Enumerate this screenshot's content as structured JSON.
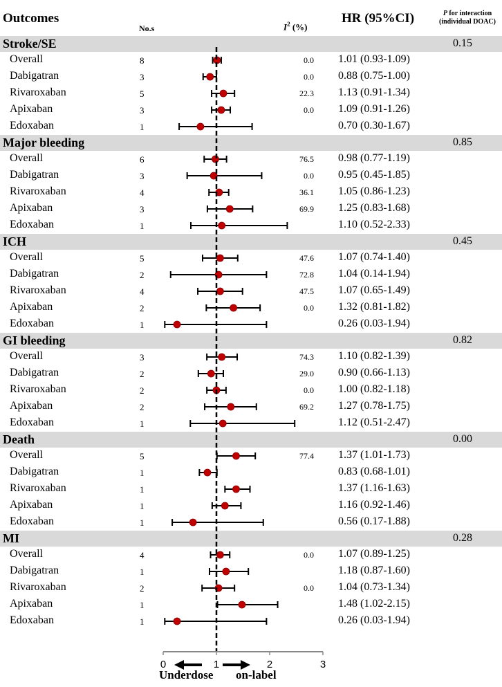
{
  "headers": {
    "outcomes": "Outcomes",
    "nos": "No.s",
    "i2_symbol": "I",
    "i2_sup": "2",
    "i2_unit": " (%)",
    "hr": "HR (95%CI)",
    "p_letter": "P",
    "p_rest": " for interaction",
    "p_line2": "(individual DOAC)"
  },
  "groups": [
    {
      "title": "Stroke/SE",
      "p": "0.15",
      "rows": [
        {
          "label": "Overall",
          "n": "8",
          "i2": "0.0",
          "hr": 1.01,
          "lo": 0.93,
          "hi": 1.09,
          "hr_text": "1.01 (0.93-1.09)"
        },
        {
          "label": "Dabigatran",
          "n": "3",
          "i2": "0.0",
          "hr": 0.88,
          "lo": 0.75,
          "hi": 1.0,
          "hr_text": "0.88 (0.75-1.00)"
        },
        {
          "label": "Rivaroxaban",
          "n": "5",
          "i2": "22.3",
          "hr": 1.13,
          "lo": 0.91,
          "hi": 1.34,
          "hr_text": "1.13 (0.91-1.34)"
        },
        {
          "label": "Apixaban",
          "n": "3",
          "i2": "0.0",
          "hr": 1.09,
          "lo": 0.91,
          "hi": 1.26,
          "hr_text": "1.09 (0.91-1.26)"
        },
        {
          "label": "Edoxaban",
          "n": "1",
          "i2": "",
          "hr": 0.7,
          "lo": 0.3,
          "hi": 1.67,
          "hr_text": "0.70 (0.30-1.67)"
        }
      ]
    },
    {
      "title": "Major bleeding",
      "p": "0.85",
      "rows": [
        {
          "label": "Overall",
          "n": "6",
          "i2": "76.5",
          "hr": 0.98,
          "lo": 0.77,
          "hi": 1.19,
          "hr_text": "0.98 (0.77-1.19)"
        },
        {
          "label": "Dabigatran",
          "n": "3",
          "i2": "0.0",
          "hr": 0.95,
          "lo": 0.45,
          "hi": 1.85,
          "hr_text": "0.95 (0.45-1.85)"
        },
        {
          "label": "Rivaroxaban",
          "n": "4",
          "i2": "36.1",
          "hr": 1.05,
          "lo": 0.86,
          "hi": 1.23,
          "hr_text": "1.05 (0.86-1.23)"
        },
        {
          "label": "Apixaban",
          "n": "3",
          "i2": "69.9",
          "hr": 1.25,
          "lo": 0.83,
          "hi": 1.68,
          "hr_text": "1.25 (0.83-1.68)"
        },
        {
          "label": "Edoxaban",
          "n": "1",
          "i2": "",
          "hr": 1.1,
          "lo": 0.52,
          "hi": 2.33,
          "hr_text": "1.10 (0.52-2.33)"
        }
      ]
    },
    {
      "title": "ICH",
      "p": "0.45",
      "rows": [
        {
          "label": "Overall",
          "n": "5",
          "i2": "47.6",
          "hr": 1.07,
          "lo": 0.74,
          "hi": 1.4,
          "hr_text": "1.07 (0.74-1.40)"
        },
        {
          "label": "Dabigatran",
          "n": "2",
          "i2": "72.8",
          "hr": 1.04,
          "lo": 0.14,
          "hi": 1.94,
          "hr_text": "1.04 (0.14-1.94)"
        },
        {
          "label": "Rivaroxaban",
          "n": "4",
          "i2": "47.5",
          "hr": 1.07,
          "lo": 0.65,
          "hi": 1.49,
          "hr_text": "1.07 (0.65-1.49)"
        },
        {
          "label": "Apixaban",
          "n": "2",
          "i2": "0.0",
          "hr": 1.32,
          "lo": 0.81,
          "hi": 1.82,
          "hr_text": "1.32 (0.81-1.82)"
        },
        {
          "label": "Edoxaban",
          "n": "1",
          "i2": "",
          "hr": 0.26,
          "lo": 0.03,
          "hi": 1.94,
          "hr_text": "0.26 (0.03-1.94)"
        }
      ]
    },
    {
      "title": "GI bleeding",
      "p": "0.82",
      "rows": [
        {
          "label": "Overall",
          "n": "3",
          "i2": "74.3",
          "hr": 1.1,
          "lo": 0.82,
          "hi": 1.39,
          "hr_text": "1.10 (0.82-1.39)"
        },
        {
          "label": "Dabigatran",
          "n": "2",
          "i2": "29.0",
          "hr": 0.9,
          "lo": 0.66,
          "hi": 1.13,
          "hr_text": "0.90 (0.66-1.13)"
        },
        {
          "label": "Rivaroxaban",
          "n": "2",
          "i2": "0.0",
          "hr": 1.0,
          "lo": 0.82,
          "hi": 1.18,
          "hr_text": "1.00 (0.82-1.18)"
        },
        {
          "label": "Apixaban",
          "n": "2",
          "i2": "69.2",
          "hr": 1.27,
          "lo": 0.78,
          "hi": 1.75,
          "hr_text": "1.27 (0.78-1.75)"
        },
        {
          "label": "Edoxaban",
          "n": "1",
          "i2": "",
          "hr": 1.12,
          "lo": 0.51,
          "hi": 2.47,
          "hr_text": "1.12 (0.51-2.47)"
        }
      ]
    },
    {
      "title": "Death",
      "p": "0.00",
      "rows": [
        {
          "label": "Overall",
          "n": "5",
          "i2": "77.4",
          "hr": 1.37,
          "lo": 1.01,
          "hi": 1.73,
          "hr_text": "1.37 (1.01-1.73)"
        },
        {
          "label": "Dabigatran",
          "n": "1",
          "i2": "",
          "hr": 0.83,
          "lo": 0.68,
          "hi": 1.01,
          "hr_text": "0.83 (0.68-1.01)"
        },
        {
          "label": "Rivaroxaban",
          "n": "1",
          "i2": "",
          "hr": 1.37,
          "lo": 1.16,
          "hi": 1.63,
          "hr_text": "1.37 (1.16-1.63)"
        },
        {
          "label": "Apixaban",
          "n": "1",
          "i2": "",
          "hr": 1.16,
          "lo": 0.92,
          "hi": 1.46,
          "hr_text": "1.16 (0.92-1.46)"
        },
        {
          "label": "Edoxaban",
          "n": "1",
          "i2": "",
          "hr": 0.56,
          "lo": 0.17,
          "hi": 1.88,
          "hr_text": "0.56 (0.17-1.88)"
        }
      ]
    },
    {
      "title": "MI",
      "p": "0.28",
      "rows": [
        {
          "label": "Overall",
          "n": "4",
          "i2": "0.0",
          "hr": 1.07,
          "lo": 0.89,
          "hi": 1.25,
          "hr_text": "1.07 (0.89-1.25)"
        },
        {
          "label": "Dabigatran",
          "n": "1",
          "i2": "",
          "hr": 1.18,
          "lo": 0.87,
          "hi": 1.6,
          "hr_text": "1.18 (0.87-1.60)"
        },
        {
          "label": "Rivaroxaban",
          "n": "2",
          "i2": "0.0",
          "hr": 1.04,
          "lo": 0.73,
          "hi": 1.34,
          "hr_text": "1.04 (0.73-1.34)"
        },
        {
          "label": "Apixaban",
          "n": "1",
          "i2": "",
          "hr": 1.48,
          "lo": 1.02,
          "hi": 2.15,
          "hr_text": "1.48 (1.02-2.15)"
        },
        {
          "label": "Edoxaban",
          "n": "1",
          "i2": "",
          "hr": 0.26,
          "lo": 0.03,
          "hi": 1.94,
          "hr_text": "0.26 (0.03-1.94)"
        }
      ]
    }
  ],
  "chart_data": {
    "type": "forest",
    "title": "",
    "xlabel": "",
    "xlim": [
      0,
      3
    ],
    "xticks": [
      "0",
      "1",
      "2",
      "3"
    ],
    "reference_line": 1,
    "direction_labels": {
      "left": "Underdose",
      "right": "on-label"
    },
    "series": [
      {
        "name": "Stroke/SE",
        "categories": [
          "Overall",
          "Dabigatran",
          "Rivaroxaban",
          "Apixaban",
          "Edoxaban"
        ],
        "hr": [
          1.01,
          0.88,
          1.13,
          1.09,
          0.7
        ],
        "lo": [
          0.93,
          0.75,
          0.91,
          0.91,
          0.3
        ],
        "hi": [
          1.09,
          1.0,
          1.34,
          1.26,
          1.67
        ]
      },
      {
        "name": "Major bleeding",
        "categories": [
          "Overall",
          "Dabigatran",
          "Rivaroxaban",
          "Apixaban",
          "Edoxaban"
        ],
        "hr": [
          0.98,
          0.95,
          1.05,
          1.25,
          1.1
        ],
        "lo": [
          0.77,
          0.45,
          0.86,
          0.83,
          0.52
        ],
        "hi": [
          1.19,
          1.85,
          1.23,
          1.68,
          2.33
        ]
      },
      {
        "name": "ICH",
        "categories": [
          "Overall",
          "Dabigatran",
          "Rivaroxaban",
          "Apixaban",
          "Edoxaban"
        ],
        "hr": [
          1.07,
          1.04,
          1.07,
          1.32,
          0.26
        ],
        "lo": [
          0.74,
          0.14,
          0.65,
          0.81,
          0.03
        ],
        "hi": [
          1.4,
          1.94,
          1.49,
          1.82,
          1.94
        ]
      },
      {
        "name": "GI bleeding",
        "categories": [
          "Overall",
          "Dabigatran",
          "Rivaroxaban",
          "Apixaban",
          "Edoxaban"
        ],
        "hr": [
          1.1,
          0.9,
          1.0,
          1.27,
          1.12
        ],
        "lo": [
          0.82,
          0.66,
          0.82,
          0.78,
          0.51
        ],
        "hi": [
          1.39,
          1.13,
          1.18,
          1.75,
          2.47
        ]
      },
      {
        "name": "Death",
        "categories": [
          "Overall",
          "Dabigatran",
          "Rivaroxaban",
          "Apixaban",
          "Edoxaban"
        ],
        "hr": [
          1.37,
          0.83,
          1.37,
          1.16,
          0.56
        ],
        "lo": [
          1.01,
          0.68,
          1.16,
          0.92,
          0.17
        ],
        "hi": [
          1.73,
          1.01,
          1.63,
          1.46,
          1.88
        ]
      },
      {
        "name": "MI",
        "categories": [
          "Overall",
          "Dabigatran",
          "Rivaroxaban",
          "Apixaban",
          "Edoxaban"
        ],
        "hr": [
          1.07,
          1.18,
          1.04,
          1.48,
          0.26
        ],
        "lo": [
          0.89,
          0.87,
          0.73,
          1.02,
          0.03
        ],
        "hi": [
          1.25,
          1.6,
          1.34,
          2.15,
          1.94
        ]
      }
    ],
    "p_interaction": {
      "Stroke/SE": 0.15,
      "Major bleeding": 0.85,
      "ICH": 0.45,
      "GI bleeding": 0.82,
      "Death": 0.0,
      "MI": 0.28
    },
    "marker_color": "#c00000",
    "band_color": "#d9d9d9"
  }
}
